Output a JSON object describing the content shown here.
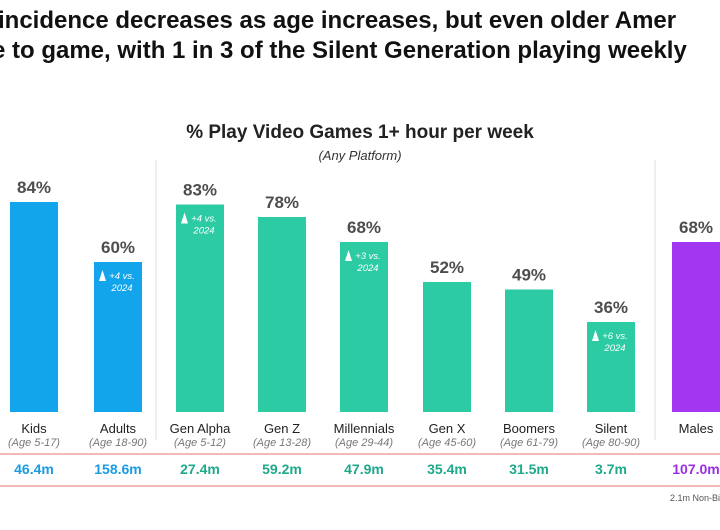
{
  "headline": {
    "line1": "incidence decreases as age increases, but even older Amer",
    "line2": "e to game, with 1 in 3 of the Silent Generation playing weekly"
  },
  "colors": {
    "blue": "#12A5EC",
    "teal": "#2DCBA4",
    "purple": "#A336F0",
    "population_blue": "#1A9BE2",
    "population_teal": "#1FA98A",
    "population_purple": "#9A2EE6",
    "divider": "#E57373",
    "separator": "#DDDDDD"
  },
  "chart_data": {
    "type": "bar",
    "title": "% Play Video Games 1+ hour per week",
    "subtitle": "(Any Platform)",
    "ylim": [
      0,
      100
    ],
    "grid": false,
    "categories": [
      "Kids",
      "Adults",
      "Gen Alpha",
      "Gen Z",
      "Millennials",
      "Gen X",
      "Boomers",
      "Silent",
      "Males"
    ],
    "age_ranges": [
      "(Age 5-17)",
      "(Age 18-90)",
      "(Age 5-12)",
      "(Age 13-28)",
      "(Age 29-44)",
      "(Age 45-60)",
      "(Age 61-79)",
      "(Age 80-90)",
      ""
    ],
    "values": [
      84,
      60,
      83,
      78,
      68,
      52,
      49,
      36,
      68
    ],
    "value_labels": [
      "84%",
      "60%",
      "83%",
      "78%",
      "68%",
      "52%",
      "49%",
      "36%",
      "68%"
    ],
    "populations": [
      "46.4m",
      "158.6m",
      "27.4m",
      "59.2m",
      "47.9m",
      "35.4m",
      "31.5m",
      "3.7m",
      "107.0m"
    ],
    "groups": [
      "age",
      "age",
      "generation",
      "generation",
      "generation",
      "generation",
      "generation",
      "generation",
      "gender"
    ],
    "changes": [
      {
        "index": 1,
        "line1": "+4 vs.",
        "line2": "2024"
      },
      {
        "index": 2,
        "line1": "+4 vs.",
        "line2": "2024"
      },
      {
        "index": 4,
        "line1": "+3 vs.",
        "line2": "2024"
      },
      {
        "index": 7,
        "line1": "+6 vs.",
        "line2": "2024"
      }
    ]
  },
  "footnote": "2.1m Non-Bi"
}
